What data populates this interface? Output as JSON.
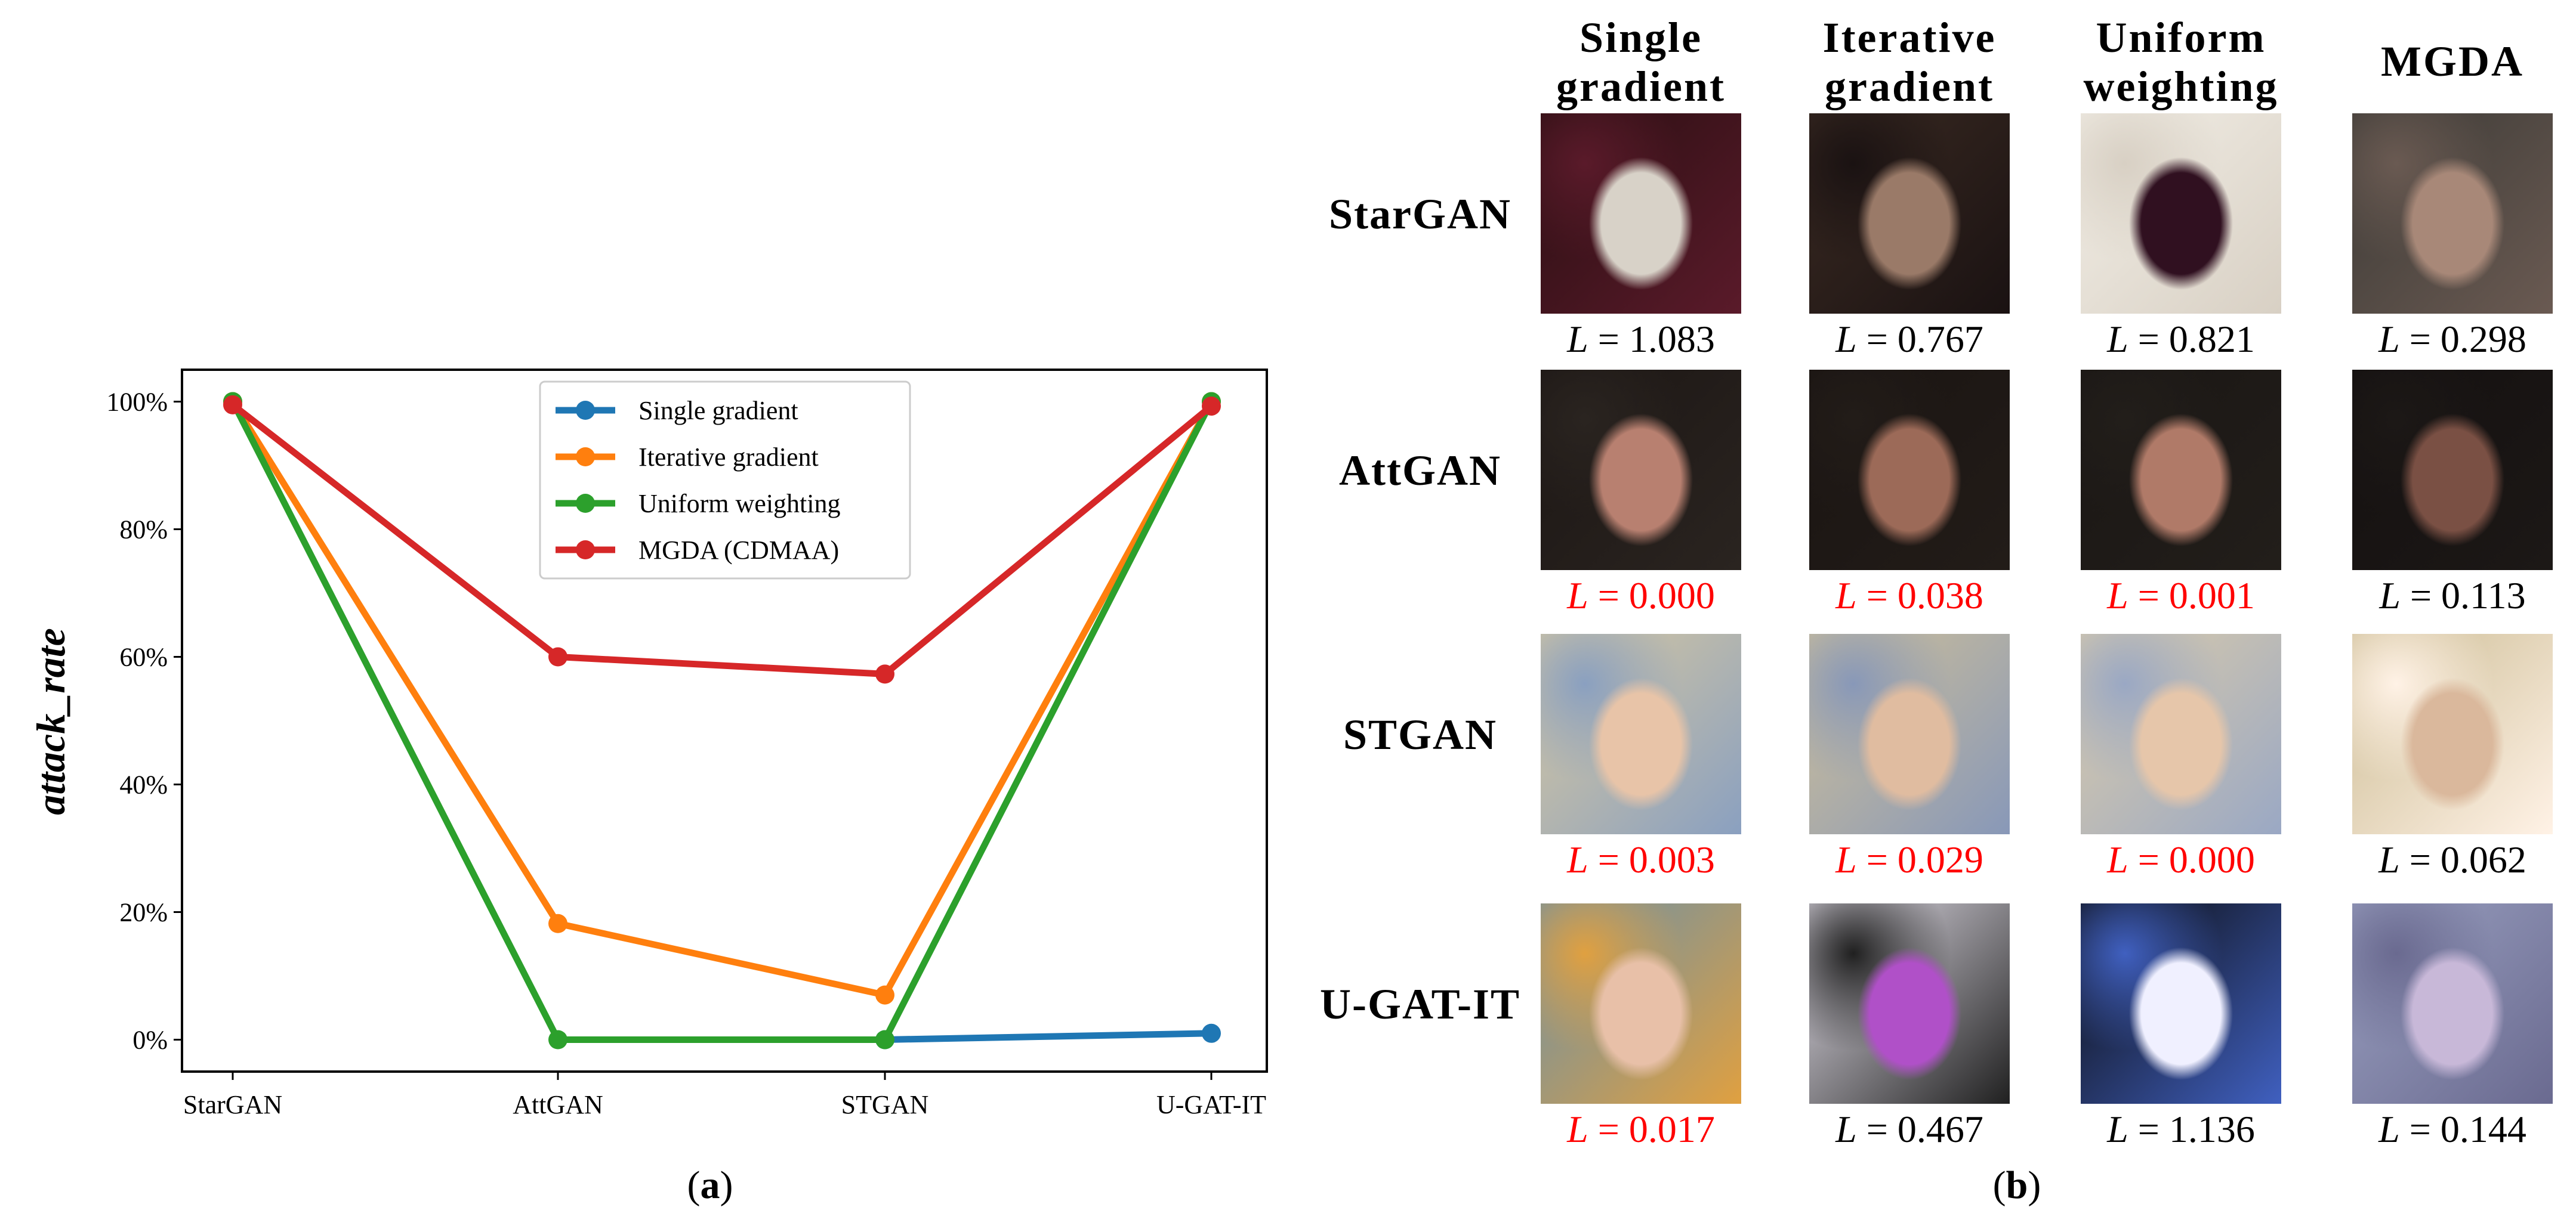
{
  "chart_data": {
    "type": "line",
    "categories": [
      "StarGAN",
      "AttGAN",
      "STGAN",
      "U-GAT-IT"
    ],
    "ylabel": "attack_rate",
    "ylim": [
      -5,
      105
    ],
    "yticks": [
      0,
      20,
      40,
      60,
      80,
      100
    ],
    "ytick_labels": [
      "0%",
      "20%",
      "40%",
      "60%",
      "80%",
      "100%"
    ],
    "legend_position": "top-center",
    "grid": false,
    "series": [
      {
        "name": "Single gradient",
        "color": "#1f77b4",
        "values": [
          null,
          null,
          0,
          1
        ]
      },
      {
        "name": "Iterative gradient",
        "color": "#ff7f0e",
        "values": [
          100,
          18.2,
          7,
          100
        ]
      },
      {
        "name": "Uniform weighting",
        "color": "#2ca02c",
        "values": [
          100,
          0,
          0,
          100
        ]
      },
      {
        "name": "MGDA (CDMAA)",
        "color": "#d62728",
        "values": [
          99.5,
          60,
          57.3,
          99.3
        ]
      }
    ]
  },
  "captions": {
    "a": "(a)",
    "b": "(b)",
    "a_letter": "a",
    "b_letter": "b"
  },
  "grid": {
    "columns": [
      "Single gradient",
      "Iterative gradient",
      "Uniform weighting",
      "MGDA"
    ],
    "column_lines": [
      [
        "Single",
        "gradient"
      ],
      [
        "Iterative",
        "gradient"
      ],
      [
        "Uniform",
        "weighting"
      ],
      [
        "MGDA"
      ]
    ],
    "loss_symbol": "L",
    "rows": [
      {
        "label": "StarGAN",
        "losses": [
          "1.083",
          "0.767",
          "0.821",
          "0.298"
        ],
        "red": [
          false,
          false,
          false,
          false
        ],
        "kind": "face-dark"
      },
      {
        "label": "AttGAN",
        "losses": [
          "0.000",
          "0.038",
          "0.001",
          "0.113"
        ],
        "red": [
          true,
          true,
          true,
          false
        ],
        "kind": "face-brunette"
      },
      {
        "label": "STGAN",
        "losses": [
          "0.003",
          "0.029",
          "0.000",
          "0.062"
        ],
        "red": [
          true,
          true,
          true,
          false
        ],
        "kind": "face-blonde"
      },
      {
        "label": "U-GAT-IT",
        "losses": [
          "0.017",
          "0.467",
          "1.136",
          "0.144"
        ],
        "red": [
          true,
          false,
          false,
          false
        ],
        "kind": "anime"
      }
    ]
  }
}
